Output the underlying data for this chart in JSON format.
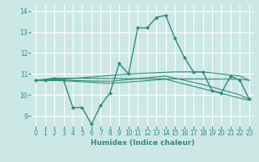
{
  "xlabel": "Humidex (Indice chaleur)",
  "ylabel": "",
  "xlim": [
    -0.5,
    23.5
  ],
  "ylim": [
    8.5,
    14.3
  ],
  "yticks": [
    9,
    10,
    11,
    12,
    13,
    14
  ],
  "xticks": [
    0,
    1,
    2,
    3,
    4,
    5,
    6,
    7,
    8,
    9,
    10,
    11,
    12,
    13,
    14,
    15,
    16,
    17,
    18,
    19,
    20,
    21,
    22,
    23
  ],
  "bg_color": "#cce8e4",
  "grid_color": "#ffffff",
  "line_color": "#2e8b7a",
  "lines": [
    {
      "x": [
        0,
        1,
        2,
        3,
        4,
        5,
        6,
        7,
        8,
        9,
        10,
        11,
        12,
        13,
        14,
        15,
        16,
        17,
        18,
        19,
        20,
        21,
        22,
        23
      ],
      "y": [
        10.7,
        10.7,
        10.8,
        10.7,
        9.4,
        9.4,
        8.6,
        9.5,
        10.1,
        11.5,
        11.0,
        13.2,
        13.2,
        13.7,
        13.8,
        12.7,
        11.8,
        11.1,
        11.1,
        10.2,
        10.1,
        10.9,
        10.7,
        9.8
      ],
      "marker": true
    },
    {
      "x": [
        0,
        2,
        22,
        23
      ],
      "y": [
        10.7,
        10.8,
        10.75,
        10.7
      ],
      "marker": false
    },
    {
      "x": [
        0,
        3,
        10,
        15,
        18,
        22,
        23
      ],
      "y": [
        10.7,
        10.75,
        11.0,
        11.1,
        11.1,
        10.9,
        10.7
      ],
      "marker": false
    },
    {
      "x": [
        0,
        3,
        8,
        14,
        18,
        22,
        23
      ],
      "y": [
        10.7,
        10.7,
        10.65,
        10.9,
        10.5,
        10.0,
        9.8
      ],
      "marker": false
    },
    {
      "x": [
        0,
        3,
        8,
        14,
        18,
        22,
        23
      ],
      "y": [
        10.7,
        10.68,
        10.55,
        10.75,
        10.3,
        9.85,
        9.75
      ],
      "marker": false
    }
  ]
}
